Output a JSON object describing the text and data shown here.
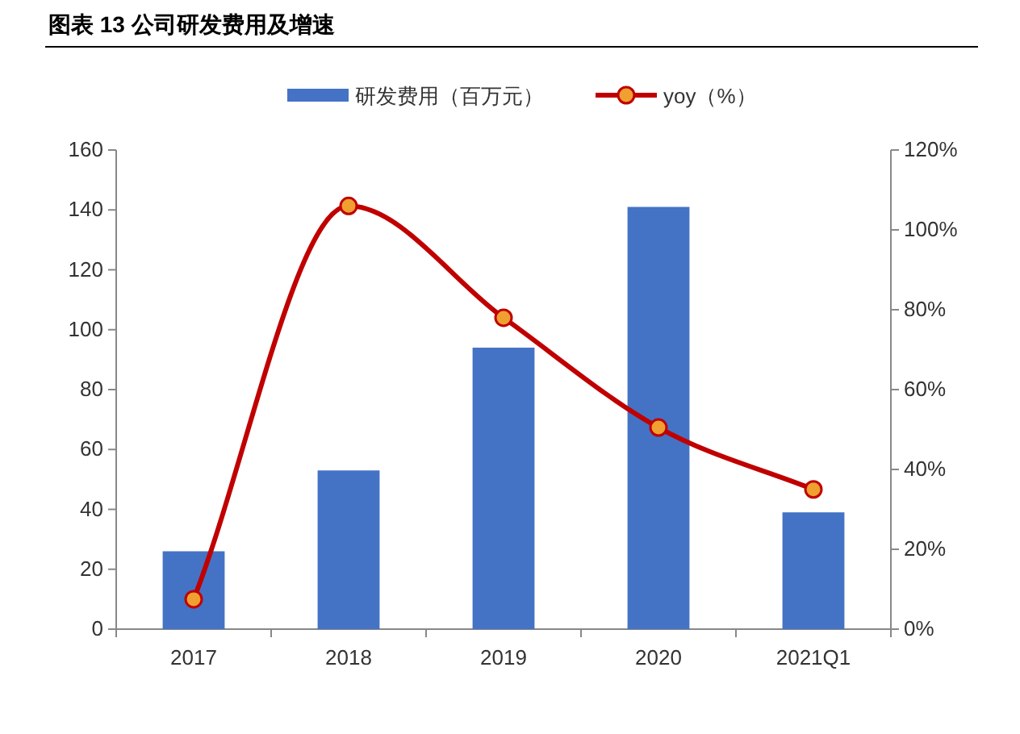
{
  "chart_data": {
    "type": "bar",
    "title": "图表 13 公司研发费用及增速",
    "categories": [
      "2017",
      "2018",
      "2019",
      "2020",
      "2021Q1"
    ],
    "series": [
      {
        "name": "研发费用（百万元）",
        "color": "#4472c4",
        "values": [
          26,
          53,
          94,
          141,
          39
        ]
      },
      {
        "name": "yoy（%）",
        "type": "line",
        "axis": "y2",
        "color": "#c00000",
        "marker": "circle",
        "values": [
          7.5,
          106,
          78,
          50.5,
          35
        ]
      }
    ],
    "ylim": [
      0,
      160
    ],
    "yticks": [
      0,
      20,
      40,
      60,
      80,
      100,
      120,
      140,
      160
    ],
    "y2lim": [
      0,
      120
    ],
    "y2ticks": [
      {
        "value": 0,
        "label": "0%"
      },
      {
        "value": 20,
        "label": "20%"
      },
      {
        "value": 40,
        "label": "40%"
      },
      {
        "value": 60,
        "label": "60%"
      },
      {
        "value": 80,
        "label": "80%"
      },
      {
        "value": 100,
        "label": "100%"
      },
      {
        "value": 120,
        "label": "120%"
      }
    ],
    "legend": "top",
    "grid": false
  }
}
